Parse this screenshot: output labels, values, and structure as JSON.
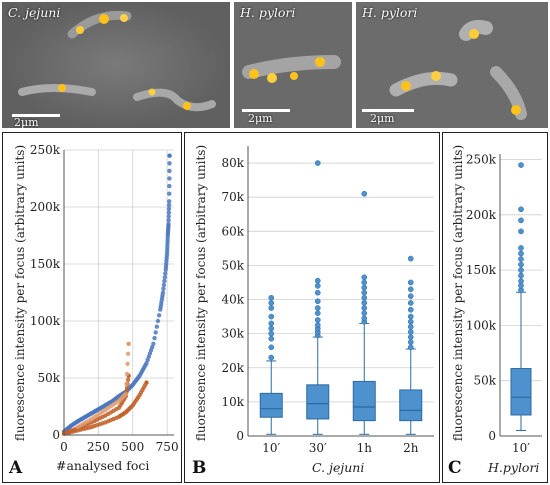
{
  "microscopy": [
    {
      "label": "C. jejuni",
      "scale": "2μm"
    },
    {
      "label": "H. pylori",
      "scale": "2μm"
    },
    {
      "label": "H. pylori",
      "scale": "2μm"
    }
  ],
  "colors": {
    "blue": "#4a78c0",
    "orange": "#c0622a",
    "box_fill": "#4d92cf",
    "box_edge": "#2c6aa0",
    "grid": "#cfcfcf"
  },
  "panel_a": {
    "letter": "A",
    "ylabel": "fluorescence intensity per focus (arbitrary units)",
    "xlabel": "#analysed foci",
    "y_ticks": [
      "0",
      "50k",
      "100k",
      "150k",
      "200k",
      "250k"
    ],
    "x_ticks": [
      "0",
      "250",
      "500",
      "750"
    ]
  },
  "panel_b": {
    "letter": "B",
    "ylabel": "fluorescence intensity per focus (arbitrary units)",
    "xlabel": "C. jejuni",
    "y_ticks": [
      "0",
      "10k",
      "20k",
      "30k",
      "40k",
      "50k",
      "60k",
      "70k",
      "80k"
    ],
    "x_ticks": [
      "10′",
      "30′",
      "1h",
      "2h"
    ]
  },
  "panel_c": {
    "letter": "C",
    "ylabel": "fluorescence intensity per focus (arbitrary units)",
    "xlabel": "H.pylori",
    "y_ticks": [
      "0",
      "50k",
      "100k",
      "150k",
      "200k",
      "250k"
    ],
    "x_ticks": [
      "10′"
    ]
  },
  "chart_data": [
    {
      "type": "scatter",
      "xlabel": "#analysed foci",
      "ylabel": "fluorescence intensity per focus (arbitrary units)",
      "xlim": [
        0,
        800
      ],
      "ylim": [
        0,
        250000
      ],
      "grid": true,
      "series": [
        {
          "color": "#4a78c0",
          "x": [
            0,
            50,
            100,
            150,
            200,
            250,
            300,
            350,
            400,
            450,
            500,
            550,
            600,
            650,
            700,
            720,
            740,
            750,
            755,
            760,
            765,
            768
          ],
          "y": [
            3000,
            8000,
            12000,
            15500,
            19000,
            22500,
            26000,
            29500,
            34000,
            38000,
            44000,
            52000,
            63000,
            80000,
            110000,
            125000,
            145000,
            160000,
            175000,
            185000,
            205000,
            245000
          ]
        },
        {
          "color": "#c0622a",
          "x": [
            0,
            100,
            200,
            300,
            400,
            450,
            500,
            550,
            600
          ],
          "y": [
            1000,
            4000,
            7000,
            11000,
            16000,
            20000,
            26000,
            35000,
            46000
          ]
        },
        {
          "color": "#c0622a",
          "x": [
            0,
            100,
            200,
            300,
            400,
            450,
            470
          ],
          "y": [
            1500,
            6000,
            11000,
            17000,
            24000,
            34000,
            52000
          ]
        },
        {
          "color": "#e09a6b",
          "x": [
            100,
            200,
            300,
            400,
            450,
            470
          ],
          "y": [
            7000,
            14000,
            22000,
            30000,
            36000,
            80000
          ]
        }
      ]
    },
    {
      "type": "box",
      "xlabel": "C. jejuni",
      "ylabel": "fluorescence intensity per focus (arbitrary units)",
      "ylim": [
        0,
        85000
      ],
      "grid": true,
      "categories": [
        "10′",
        "30′",
        "1h",
        "2h"
      ],
      "boxes": [
        {
          "whisker_low": 500,
          "q1": 5500,
          "median": 8000,
          "q3": 12500,
          "whisker_high": 22000,
          "outliers": [
            23000,
            26000,
            28500,
            30000,
            31500,
            33000,
            35000,
            37500,
            39000,
            40500
          ]
        },
        {
          "whisker_low": 500,
          "q1": 5000,
          "median": 9500,
          "q3": 15000,
          "whisker_high": 29000,
          "outliers": [
            29500,
            30500,
            31500,
            32500,
            34000,
            36000,
            37500,
            39500,
            42000,
            44000,
            45500,
            80000
          ]
        },
        {
          "whisker_low": 500,
          "q1": 4500,
          "median": 8500,
          "q3": 16000,
          "whisker_high": 33000,
          "outliers": [
            33500,
            34500,
            36000,
            37500,
            39000,
            40500,
            42000,
            43500,
            45000,
            46500,
            71000
          ]
        },
        {
          "whisker_low": 500,
          "q1": 4500,
          "median": 7500,
          "q3": 13500,
          "whisker_high": 25500,
          "outliers": [
            26000,
            27500,
            29000,
            30500,
            32000,
            33500,
            35000,
            37000,
            39000,
            41000,
            43000,
            45000,
            52000
          ]
        }
      ]
    },
    {
      "type": "box",
      "xlabel": "H.pylori",
      "ylabel": "fluorescence intensity per focus (arbitrary units)",
      "ylim": [
        0,
        255000
      ],
      "grid": true,
      "categories": [
        "10′"
      ],
      "boxes": [
        {
          "whisker_low": 5000,
          "q1": 19000,
          "median": 35000,
          "q3": 61000,
          "whisker_high": 130000,
          "outliers": [
            132000,
            136000,
            140000,
            145000,
            150000,
            155000,
            160000,
            165000,
            170000,
            185000,
            195000,
            205000,
            245000
          ]
        }
      ]
    }
  ]
}
